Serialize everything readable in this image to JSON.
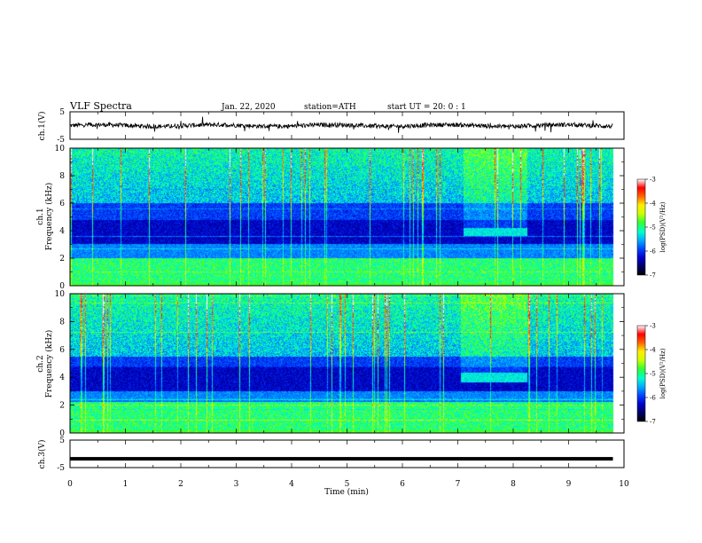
{
  "header": {
    "title": "VLF  Spectra",
    "date": "Jan. 22, 2020",
    "station": "station=ATH",
    "start": "start  UT  =   20: 0  : 1"
  },
  "colorbar_label": "log(PSD)(V²/Hz)",
  "chart_data": [
    {
      "type": "line",
      "name": "ch1-waveform",
      "ylabel": "ch.1(V)",
      "ylim": [
        -5,
        5
      ],
      "yticks": [
        "5",
        "-5"
      ],
      "xlim": [
        0,
        10
      ],
      "x_end": 9.8,
      "baseline": 0,
      "noise_amplitude": 0.8
    },
    {
      "type": "heatmap",
      "name": "ch1-spectrogram",
      "ylabel": "ch.1 Frequency (kHz)",
      "ylim": [
        0,
        10
      ],
      "yticks": [
        "0",
        "2",
        "4",
        "6",
        "8",
        "10"
      ],
      "xlim": [
        0,
        10
      ],
      "x_end": 9.8,
      "colorbar": {
        "min": -7,
        "max": -3,
        "ticks": [
          "-7",
          "-6",
          "-5",
          "-4",
          "-3"
        ]
      },
      "features": {
        "bright_band_khz": [
          0.2,
          2.0
        ],
        "dark_band_khz": [
          3.0,
          4.8
        ],
        "noisy_above_khz": 6.0,
        "event_window_min": [
          7.1,
          8.25
        ],
        "event_band_khz": [
          3.6,
          4.2
        ]
      }
    },
    {
      "type": "heatmap",
      "name": "ch2-spectrogram",
      "ylabel": "ch.2 Frequency (kHz)",
      "ylim": [
        0,
        10
      ],
      "yticks": [
        "0",
        "2",
        "4",
        "6",
        "8",
        "10"
      ],
      "xlim": [
        0,
        10
      ],
      "x_end": 9.8,
      "colorbar": {
        "min": -7,
        "max": -3,
        "ticks": [
          "-7",
          "-6",
          "-5",
          "-4",
          "-3"
        ]
      },
      "features": {
        "bright_band_khz": [
          0.3,
          2.2
        ],
        "dark_band_khz": [
          3.0,
          4.8
        ],
        "noisy_above_khz": 5.5,
        "event_window_min": [
          7.05,
          8.25
        ],
        "event_band_khz": [
          3.6,
          4.3
        ]
      }
    },
    {
      "type": "line",
      "name": "ch3-waveform",
      "ylabel": "ch.3(V)",
      "ylim": [
        -5,
        5
      ],
      "yticks": [
        "5",
        "-5"
      ],
      "xlim": [
        0,
        10
      ],
      "x_end": 9.8,
      "baseline": -1.8
    }
  ],
  "x_axis": {
    "label": "Time  (min)",
    "ticks": [
      "0",
      "1",
      "2",
      "3",
      "4",
      "5",
      "6",
      "7",
      "8",
      "9",
      "10"
    ]
  },
  "colormap": [
    "#000000",
    "#000066",
    "#0000cc",
    "#0044ff",
    "#00aaff",
    "#00ffcc",
    "#33ff33",
    "#ccff00",
    "#ffee00",
    "#ff6600",
    "#ff0000",
    "#ffffff"
  ]
}
